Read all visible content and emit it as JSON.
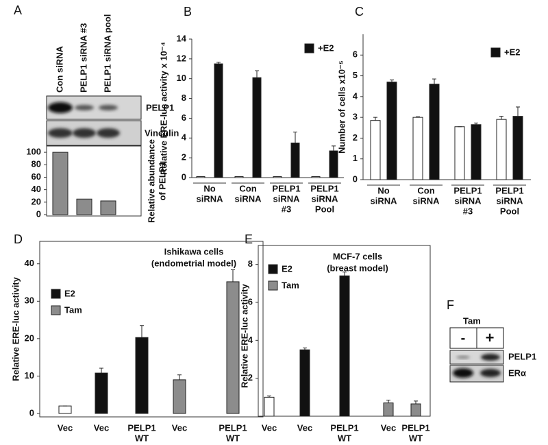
{
  "panel_labels": [
    "A",
    "B",
    "C",
    "D",
    "E",
    "F"
  ],
  "blot_a": {
    "rows": [
      "PELP1",
      "Vinculin"
    ]
  },
  "blot_f": {
    "treatment": "Tam",
    "lanes": [
      "-",
      "+"
    ],
    "rows": [
      "PELP1",
      "ERα"
    ]
  },
  "chart_data": [
    {
      "type": "bar",
      "categories": [
        "Con siRNA",
        "PELP1 siRNA #3",
        "PELP1 siRNA pool"
      ],
      "ylabel": [
        "Relative abundance",
        "of PELP1"
      ],
      "series": [
        {
          "color": "#8c8c8c",
          "values": [
            100,
            25,
            22
          ]
        }
      ],
      "ylim": [
        0,
        110
      ],
      "yticks": [
        0,
        20,
        40,
        60,
        80,
        100
      ]
    },
    {
      "type": "bar",
      "ylabel": "Relative ERE-luc activity x 10⁻⁴",
      "categories": [
        [
          "No",
          "siRNA"
        ],
        [
          "Con",
          "siRNA"
        ],
        [
          "PELP1",
          "siRNA",
          "#3"
        ],
        [
          "PELP1",
          "siRNA",
          "Pool"
        ]
      ],
      "series": [
        {
          "color": "#ffffff",
          "values": [
            0.1,
            0.1,
            0.1,
            0.1
          ]
        },
        {
          "name": "+E2",
          "color": "#111111",
          "values": [
            11.5,
            10.1,
            3.5,
            2.7
          ],
          "errors": [
            0.15,
            0.7,
            1.1,
            0.5
          ]
        }
      ],
      "ylim": [
        0,
        14
      ],
      "yticks": [
        0,
        2,
        4,
        6,
        8,
        10,
        12,
        14
      ]
    },
    {
      "type": "bar",
      "ylabel": "Number of cells x10⁻⁵",
      "categories": [
        [
          "No",
          "siRNA"
        ],
        [
          "Con",
          "siRNA"
        ],
        [
          "PELP1",
          "siRNA",
          "#3"
        ],
        [
          "PELP1",
          "siRNA",
          "Pool"
        ]
      ],
      "series": [
        {
          "color": "#ffffff",
          "values": [
            2.85,
            3.0,
            2.55,
            2.9
          ],
          "errors": [
            0.15,
            0.03,
            0,
            0.15
          ]
        },
        {
          "name": "+E2",
          "color": "#111111",
          "values": [
            4.7,
            4.6,
            2.65,
            3.05
          ],
          "errors": [
            0.1,
            0.25,
            0.08,
            0.45
          ]
        }
      ],
      "ylim": [
        0,
        7
      ],
      "yticks": [
        0,
        1,
        2,
        3,
        4,
        5,
        6
      ]
    },
    {
      "type": "bar",
      "title": [
        "Ishikawa cells",
        "(endometrial model)"
      ],
      "ylabel": "Relative ERE-luc activity",
      "categories": [
        [
          "Vec"
        ],
        [
          "Vec"
        ],
        [
          "PELP1",
          "WT"
        ],
        [
          "Vec"
        ],
        [
          "PELP1",
          "WT"
        ]
      ],
      "series": [
        {
          "color": "#ffffff",
          "values": [
            2,
            null,
            null,
            null,
            null
          ],
          "errors": [
            0,
            null,
            null,
            null,
            null
          ]
        },
        {
          "name": "E2",
          "color": "#111111",
          "values": [
            null,
            10.8,
            20.3,
            null,
            null
          ],
          "errors": [
            null,
            1.3,
            3.2,
            null,
            null
          ]
        },
        {
          "name": "Tam",
          "color": "#8c8c8c",
          "values": [
            null,
            null,
            null,
            9,
            35.2
          ],
          "errors": [
            null,
            null,
            null,
            1.3,
            3.2
          ]
        }
      ],
      "ylim": [
        0,
        46
      ],
      "yticks": [
        0,
        10,
        20,
        30,
        40
      ]
    },
    {
      "type": "bar",
      "title": [
        "MCF-7 cells",
        "(breast model)"
      ],
      "ylabel": "Relative ERE-luc activity",
      "categories": [
        [
          "Vec"
        ],
        [
          "Vec"
        ],
        [
          "PELP1",
          "WT"
        ],
        [
          "Vec"
        ],
        [
          "PELP1",
          "WT"
        ]
      ],
      "series": [
        {
          "color": "#ffffff",
          "values": [
            1.0,
            null,
            null,
            null,
            null
          ],
          "errors": [
            0.07,
            null,
            null,
            null,
            null
          ]
        },
        {
          "name": "E2",
          "color": "#111111",
          "values": [
            null,
            3.5,
            7.4,
            null,
            null
          ],
          "errors": [
            null,
            0.1,
            0.2,
            null,
            null
          ]
        },
        {
          "name": "Tam",
          "color": "#8c8c8c",
          "values": [
            null,
            null,
            null,
            0.7,
            0.65
          ],
          "errors": [
            null,
            null,
            null,
            0.15,
            0.15
          ]
        }
      ],
      "ylim": [
        0,
        9
      ],
      "yticks": [
        2,
        4,
        6,
        8
      ]
    }
  ]
}
